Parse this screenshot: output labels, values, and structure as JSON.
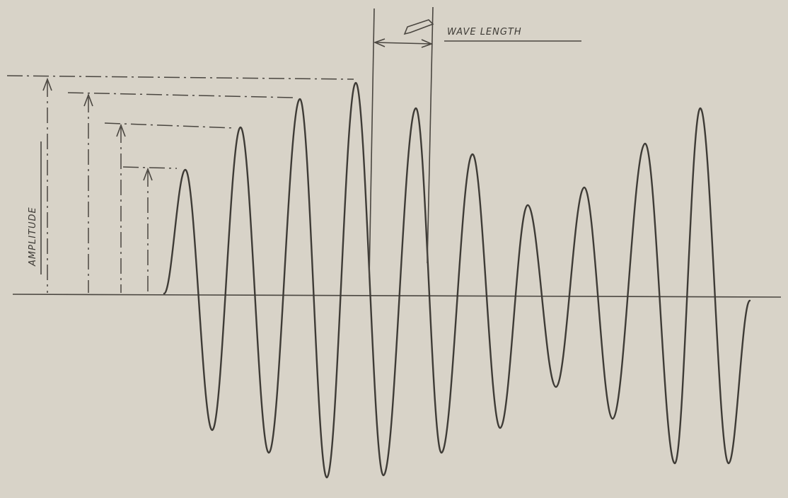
{
  "diagram": {
    "labels": {
      "wave_length": "WAVE LENGTH",
      "amplitude": "AMPLITUDE"
    },
    "colors": {
      "background": "#d8d3c8",
      "ink": "#3e3b36"
    },
    "wave": {
      "peak_count": 10,
      "trough_count": 10
    }
  }
}
